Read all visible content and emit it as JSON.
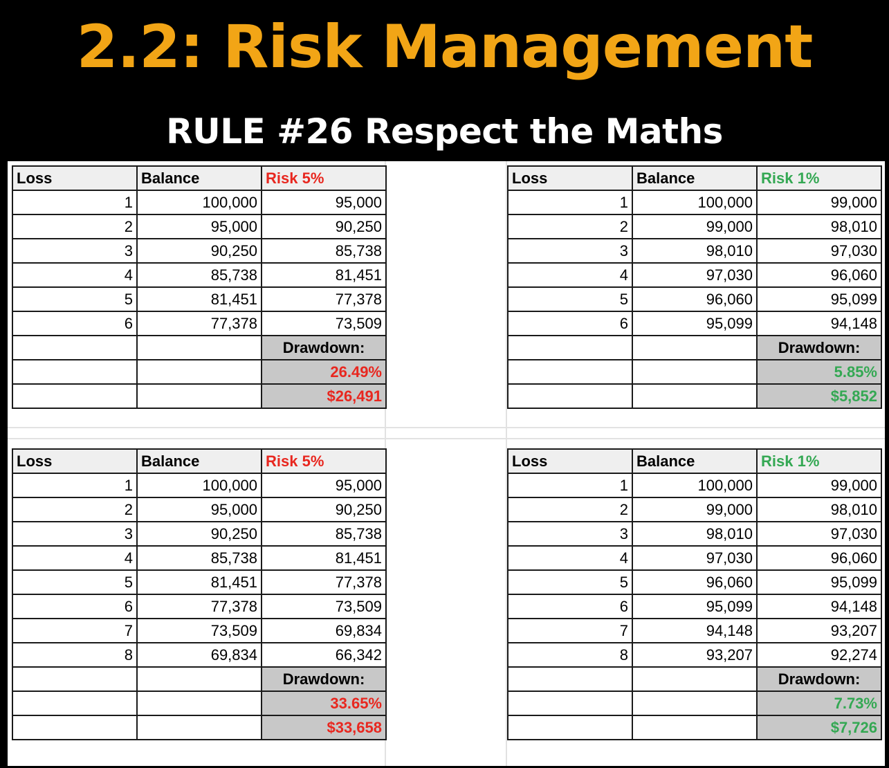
{
  "title": "2.2: Risk Management",
  "subtitle": "RULE #26 Respect the Maths",
  "tables": [
    {
      "headers": [
        "Loss",
        "Balance",
        "Risk 5%"
      ],
      "rows": [
        [
          "1",
          "100,000",
          "95,000"
        ],
        [
          "2",
          "95,000",
          "90,250"
        ],
        [
          "3",
          "90,250",
          "85,738"
        ],
        [
          "4",
          "85,738",
          "81,451"
        ],
        [
          "5",
          "81,451",
          "77,378"
        ],
        [
          "6",
          "77,378",
          "73,509"
        ]
      ],
      "drawdown_label": "Drawdown:",
      "drawdown_pct": "26.49%",
      "drawdown_amt": "$26,491",
      "accent": "#e8271f"
    },
    {
      "headers": [
        "Loss",
        "Balance",
        "Risk 1%"
      ],
      "rows": [
        [
          "1",
          "100,000",
          "99,000"
        ],
        [
          "2",
          "99,000",
          "98,010"
        ],
        [
          "3",
          "98,010",
          "97,030"
        ],
        [
          "4",
          "97,030",
          "96,060"
        ],
        [
          "5",
          "96,060",
          "95,099"
        ],
        [
          "6",
          "95,099",
          "94,148"
        ]
      ],
      "drawdown_label": "Drawdown:",
      "drawdown_pct": "5.85%",
      "drawdown_amt": "$5,852",
      "accent": "#34a853"
    },
    {
      "headers": [
        "Loss",
        "Balance",
        "Risk 5%"
      ],
      "rows": [
        [
          "1",
          "100,000",
          "95,000"
        ],
        [
          "2",
          "95,000",
          "90,250"
        ],
        [
          "3",
          "90,250",
          "85,738"
        ],
        [
          "4",
          "85,738",
          "81,451"
        ],
        [
          "5",
          "81,451",
          "77,378"
        ],
        [
          "6",
          "77,378",
          "73,509"
        ],
        [
          "7",
          "73,509",
          "69,834"
        ],
        [
          "8",
          "69,834",
          "66,342"
        ]
      ],
      "drawdown_label": "Drawdown:",
      "drawdown_pct": "33.65%",
      "drawdown_amt": "$33,658",
      "accent": "#e8271f"
    },
    {
      "headers": [
        "Loss",
        "Balance",
        "Risk 1%"
      ],
      "rows": [
        [
          "1",
          "100,000",
          "99,000"
        ],
        [
          "2",
          "99,000",
          "98,010"
        ],
        [
          "3",
          "98,010",
          "97,030"
        ],
        [
          "4",
          "97,030",
          "96,060"
        ],
        [
          "5",
          "96,060",
          "95,099"
        ],
        [
          "6",
          "95,099",
          "94,148"
        ],
        [
          "7",
          "94,148",
          "93,207"
        ],
        [
          "8",
          "93,207",
          "92,274"
        ]
      ],
      "drawdown_label": "Drawdown:",
      "drawdown_pct": "7.73%",
      "drawdown_amt": "$7,726",
      "accent": "#34a853"
    }
  ]
}
